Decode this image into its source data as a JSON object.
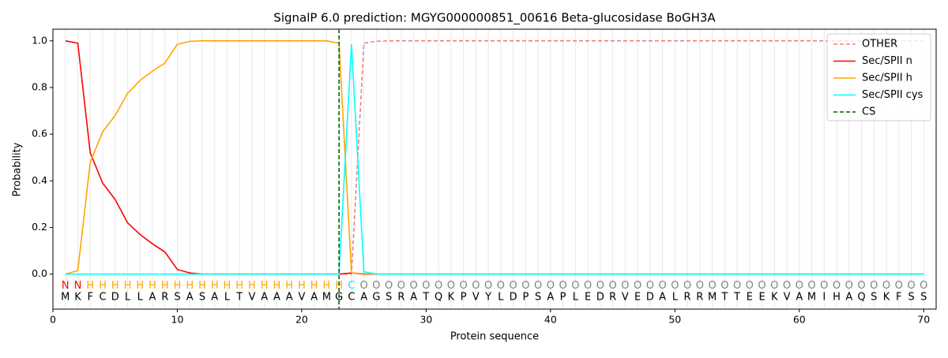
{
  "chart_data": {
    "type": "line",
    "title": "SignalP 6.0 prediction: MGYG000000851_00616 Beta-glucosidase BoGH3A",
    "x_label": "Protein sequence",
    "y_label": "Probability",
    "x": [
      1,
      2,
      3,
      4,
      5,
      6,
      7,
      8,
      9,
      10,
      11,
      12,
      13,
      14,
      15,
      16,
      17,
      18,
      19,
      20,
      21,
      22,
      23,
      24,
      25,
      26,
      27,
      28,
      29,
      30,
      31,
      32,
      33,
      34,
      35,
      36,
      37,
      38,
      39,
      40,
      41,
      42,
      43,
      44,
      45,
      46,
      47,
      48,
      49,
      50,
      51,
      52,
      53,
      54,
      55,
      56,
      57,
      58,
      59,
      60,
      61,
      62,
      63,
      64,
      65,
      66,
      67,
      68,
      69,
      70
    ],
    "sequence": [
      "M",
      "K",
      "F",
      "C",
      "D",
      "L",
      "L",
      "A",
      "R",
      "S",
      "A",
      "S",
      "A",
      "L",
      "T",
      "V",
      "A",
      "A",
      "A",
      "V",
      "A",
      "M",
      "G",
      "C",
      "A",
      "G",
      "S",
      "R",
      "A",
      "T",
      "Q",
      "K",
      "P",
      "V",
      "Y",
      "L",
      "D",
      "P",
      "S",
      "A",
      "P",
      "L",
      "E",
      "D",
      "R",
      "V",
      "E",
      "D",
      "A",
      "L",
      "R",
      "R",
      "M",
      "T",
      "T",
      "E",
      "E",
      "K",
      "V",
      "A",
      "M",
      "I",
      "H",
      "A",
      "Q",
      "S",
      "K",
      "F",
      "S",
      "S"
    ],
    "labels": [
      "N",
      "N",
      "H",
      "H",
      "H",
      "H",
      "H",
      "H",
      "H",
      "H",
      "H",
      "H",
      "H",
      "H",
      "H",
      "H",
      "H",
      "H",
      "H",
      "H",
      "H",
      "H",
      "H",
      "C",
      "O",
      "O",
      "O",
      "O",
      "O",
      "O",
      "O",
      "O",
      "O",
      "O",
      "O",
      "O",
      "O",
      "O",
      "O",
      "O",
      "O",
      "O",
      "O",
      "O",
      "O",
      "O",
      "O",
      "O",
      "O",
      "O",
      "O",
      "O",
      "O",
      "O",
      "O",
      "O",
      "O",
      "O",
      "O",
      "O",
      "O",
      "O",
      "O",
      "O",
      "O",
      "O",
      "O",
      "O",
      "O",
      "O"
    ],
    "label_colors": {
      "N": "#ff0000",
      "H": "#ffa500",
      "C": "#00e5ee",
      "O": "#808080"
    },
    "series": [
      {
        "name": "OTHER",
        "color": "#f08080",
        "dash": true,
        "values": [
          0,
          0,
          0,
          0,
          0,
          0,
          0,
          0,
          0,
          0,
          0,
          0,
          0,
          0,
          0,
          0,
          0,
          0,
          0,
          0,
          0,
          0,
          0,
          0,
          0.99,
          0.998,
          1,
          1,
          1,
          1,
          1,
          1,
          1,
          1,
          1,
          1,
          1,
          1,
          1,
          1,
          1,
          1,
          1,
          1,
          1,
          1,
          1,
          1,
          1,
          1,
          1,
          1,
          1,
          1,
          1,
          1,
          1,
          1,
          1,
          1,
          1,
          1,
          1,
          1,
          1,
          1,
          1,
          1,
          1,
          1
        ]
      },
      {
        "name": "Sec/SPII n",
        "color": "#ff0000",
        "values": [
          1.0,
          0.99,
          0.52,
          0.39,
          0.32,
          0.22,
          0.17,
          0.13,
          0.095,
          0.02,
          0.005,
          0,
          0,
          0,
          0,
          0,
          0,
          0,
          0,
          0,
          0,
          0,
          0,
          0.005,
          0,
          0,
          0,
          0,
          0,
          0,
          0,
          0,
          0,
          0,
          0,
          0,
          0,
          0,
          0,
          0,
          0,
          0,
          0,
          0,
          0,
          0,
          0,
          0,
          0,
          0,
          0,
          0,
          0,
          0,
          0,
          0,
          0,
          0,
          0,
          0,
          0,
          0,
          0,
          0,
          0,
          0,
          0,
          0,
          0,
          0
        ]
      },
      {
        "name": "Sec/SPII h",
        "color": "#ffa500",
        "values": [
          0,
          0.015,
          0.48,
          0.61,
          0.68,
          0.775,
          0.83,
          0.87,
          0.905,
          0.985,
          0.998,
          1,
          1,
          1,
          1,
          1,
          1,
          1,
          1,
          1,
          1,
          1,
          0.99,
          0.005,
          0.002,
          0,
          0,
          0,
          0,
          0,
          0,
          0,
          0,
          0,
          0,
          0,
          0,
          0,
          0,
          0,
          0,
          0,
          0,
          0,
          0,
          0,
          0,
          0,
          0,
          0,
          0,
          0,
          0,
          0,
          0,
          0,
          0,
          0,
          0,
          0,
          0,
          0,
          0,
          0,
          0,
          0,
          0,
          0,
          0,
          0
        ]
      },
      {
        "name": "Sec/SPII cys",
        "color": "#00ffff",
        "values": [
          0,
          0,
          0,
          0,
          0,
          0,
          0,
          0,
          0,
          0,
          0,
          0,
          0,
          0,
          0,
          0,
          0,
          0,
          0,
          0,
          0,
          0,
          0,
          0.985,
          0.01,
          0,
          0,
          0,
          0,
          0,
          0,
          0,
          0,
          0,
          0,
          0,
          0,
          0,
          0,
          0,
          0,
          0,
          0,
          0,
          0,
          0,
          0,
          0,
          0,
          0,
          0,
          0,
          0,
          0,
          0,
          0,
          0,
          0,
          0,
          0,
          0,
          0,
          0,
          0,
          0,
          0,
          0,
          0,
          0,
          0
        ]
      }
    ],
    "cs": {
      "name": "CS",
      "color": "#006400",
      "x": 23
    },
    "xlim": [
      0,
      71
    ],
    "ylim": [
      -0.15,
      1.05
    ],
    "xticks": [
      0,
      10,
      20,
      30,
      40,
      50,
      60,
      70
    ],
    "yticks": [
      {
        "value": 0,
        "label": "0.0"
      },
      {
        "value": 0.2,
        "label": "0.2"
      },
      {
        "value": 0.4,
        "label": "0.4"
      },
      {
        "value": 0.6,
        "label": "0.6"
      },
      {
        "value": 0.8,
        "label": "0.8"
      },
      {
        "value": 1.0,
        "label": "1.0"
      }
    ],
    "seq_row_y": -0.1,
    "label_row_y": -0.05,
    "legend": "upper right"
  }
}
